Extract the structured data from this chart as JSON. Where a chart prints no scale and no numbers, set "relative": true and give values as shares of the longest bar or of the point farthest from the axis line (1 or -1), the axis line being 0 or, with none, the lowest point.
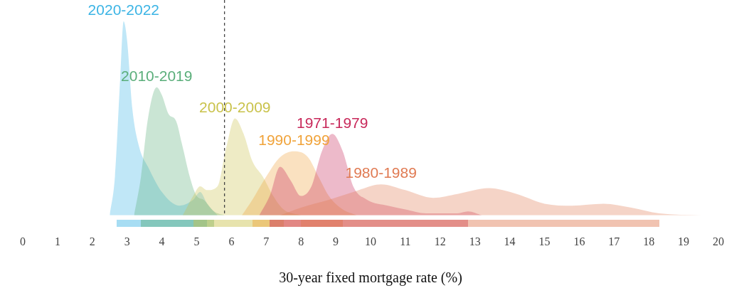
{
  "chart_data": {
    "type": "area",
    "relative": true,
    "xlabel": "30-year fixed mortgage rate (%)",
    "xlim": [
      0,
      20
    ],
    "xticks": [
      0,
      1,
      2,
      3,
      4,
      5,
      6,
      7,
      8,
      9,
      10,
      11,
      12,
      13,
      14,
      15,
      16,
      17,
      18,
      19,
      20
    ],
    "grid": false,
    "legend": false,
    "ref_lines": [
      {
        "axis": "x",
        "value": 5.8,
        "label": null,
        "color": "#444444",
        "line_style": "dashed"
      }
    ],
    "series": [
      {
        "name": "1980-1989",
        "color": "#e07a52",
        "x": [
          7.4,
          8,
          8.8,
          9.5,
          10.3,
          11,
          11.8,
          12.5,
          13.4,
          14.2,
          15,
          15.8,
          16.7,
          17.5,
          18.3,
          19.5
        ],
        "values": [
          0,
          0.04,
          0.08,
          0.12,
          0.16,
          0.13,
          0.09,
          0.11,
          0.14,
          0.11,
          0.06,
          0.05,
          0.06,
          0.04,
          0.01,
          0
        ]
      },
      {
        "name": "1971-1979",
        "color": "#c8285a",
        "x": [
          6.8,
          7.1,
          7.4,
          7.7,
          8,
          8.3,
          8.6,
          8.9,
          9.2,
          9.5,
          9.9,
          10.5,
          11,
          11.6,
          12.5,
          12.8,
          13.2
        ],
        "values": [
          0,
          0.1,
          0.25,
          0.18,
          0.1,
          0.15,
          0.33,
          0.42,
          0.33,
          0.15,
          0.08,
          0.05,
          0.03,
          0.01,
          0.01,
          0.02,
          0
        ]
      },
      {
        "name": "1990-1999",
        "color": "#f0a33a",
        "x": [
          6.3,
          6.6,
          7,
          7.4,
          7.8,
          8.2,
          8.5,
          8.8,
          9.2,
          9.6
        ],
        "values": [
          0,
          0.08,
          0.2,
          0.3,
          0.33,
          0.3,
          0.2,
          0.1,
          0.03,
          0
        ]
      },
      {
        "name": "2000-2009",
        "color": "#c9c24a",
        "x": [
          4.6,
          4.9,
          5.1,
          5.3,
          5.6,
          5.85,
          6.1,
          6.35,
          6.6,
          6.9,
          7.2,
          7.5,
          8
        ],
        "values": [
          0,
          0.1,
          0.15,
          0.13,
          0.15,
          0.35,
          0.5,
          0.42,
          0.28,
          0.2,
          0.1,
          0.03,
          0
        ]
      },
      {
        "name": "2010-2019",
        "color": "#5aae7a",
        "x": [
          3.2,
          3.4,
          3.6,
          3.85,
          4,
          4.2,
          4.4,
          4.6,
          4.8,
          5,
          5.2,
          5.5,
          5.8
        ],
        "values": [
          0,
          0.2,
          0.5,
          0.66,
          0.62,
          0.52,
          0.49,
          0.35,
          0.2,
          0.1,
          0.08,
          0.02,
          0
        ]
      },
      {
        "name": "2020-2022",
        "color": "#3bb4e5",
        "x": [
          2.5,
          2.65,
          2.8,
          2.9,
          3,
          3.15,
          3.35,
          3.6,
          4,
          4.5,
          4.9,
          5.1,
          5.3,
          5.6
        ],
        "values": [
          0,
          0.2,
          0.7,
          1,
          0.9,
          0.55,
          0.35,
          0.25,
          0.12,
          0.05,
          0.08,
          0.12,
          0.06,
          0
        ]
      }
    ]
  }
}
